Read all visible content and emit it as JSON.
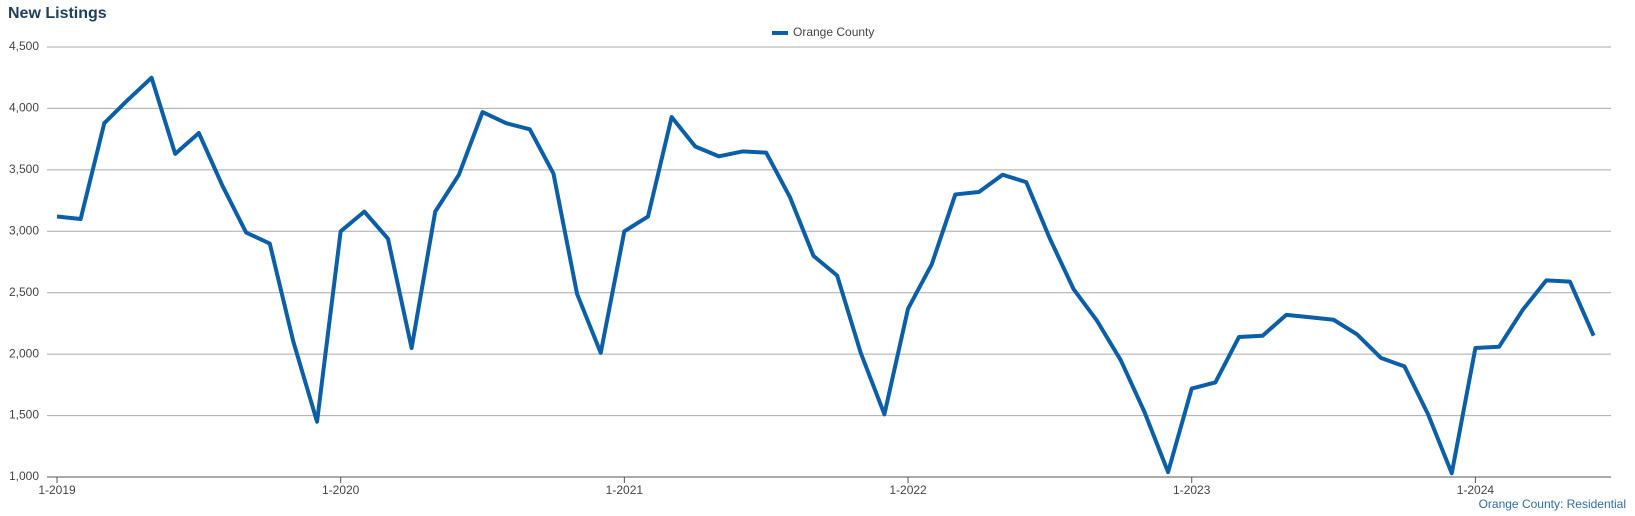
{
  "chart_data": {
    "type": "line",
    "title": "New Listings",
    "footer": "Orange County: Residential",
    "categories": [
      "1-2019",
      null,
      null,
      null,
      null,
      null,
      null,
      null,
      null,
      null,
      null,
      null,
      "1-2020",
      null,
      null,
      null,
      null,
      null,
      null,
      null,
      null,
      null,
      null,
      null,
      "1-2021",
      null,
      null,
      null,
      null,
      null,
      null,
      null,
      null,
      null,
      null,
      null,
      "1-2022",
      null,
      null,
      null,
      null,
      null,
      null,
      null,
      null,
      null,
      null,
      null,
      "1-2023",
      null,
      null,
      null,
      null,
      null,
      null,
      null,
      null,
      null,
      null,
      null,
      "1-2024",
      null,
      null,
      null,
      null,
      null
    ],
    "series": [
      {
        "name": "Orange County",
        "color": "#0b5ea8",
        "values": [
          3120,
          3100,
          3880,
          4070,
          4250,
          3630,
          3800,
          3370,
          2990,
          2900,
          2100,
          1450,
          3000,
          3160,
          2940,
          2050,
          3160,
          3460,
          3970,
          3880,
          3830,
          3470,
          2490,
          2010,
          3000,
          3120,
          3930,
          3690,
          3610,
          3650,
          3640,
          3280,
          2800,
          2640,
          2010,
          1510,
          2370,
          2730,
          3300,
          3320,
          3460,
          3400,
          2940,
          2530,
          2270,
          1950,
          1530,
          1040,
          1720,
          1770,
          2140,
          2150,
          2320,
          2300,
          2280,
          2160,
          1970,
          1900,
          1510,
          1030,
          2050,
          2060,
          2360,
          2600,
          2590,
          2150
        ]
      }
    ],
    "ylim": [
      1000,
      4500
    ],
    "yticks": [
      {
        "value": 1000,
        "label": "1,000"
      },
      {
        "value": 1500,
        "label": "1,500"
      },
      {
        "value": 2000,
        "label": "2,000"
      },
      {
        "value": 2500,
        "label": "2,500"
      },
      {
        "value": 3000,
        "label": "3,000"
      },
      {
        "value": 3500,
        "label": "3,500"
      },
      {
        "value": 4000,
        "label": "4,000"
      },
      {
        "value": 4500,
        "label": "4,500"
      }
    ],
    "grid": true,
    "legend": "top"
  }
}
